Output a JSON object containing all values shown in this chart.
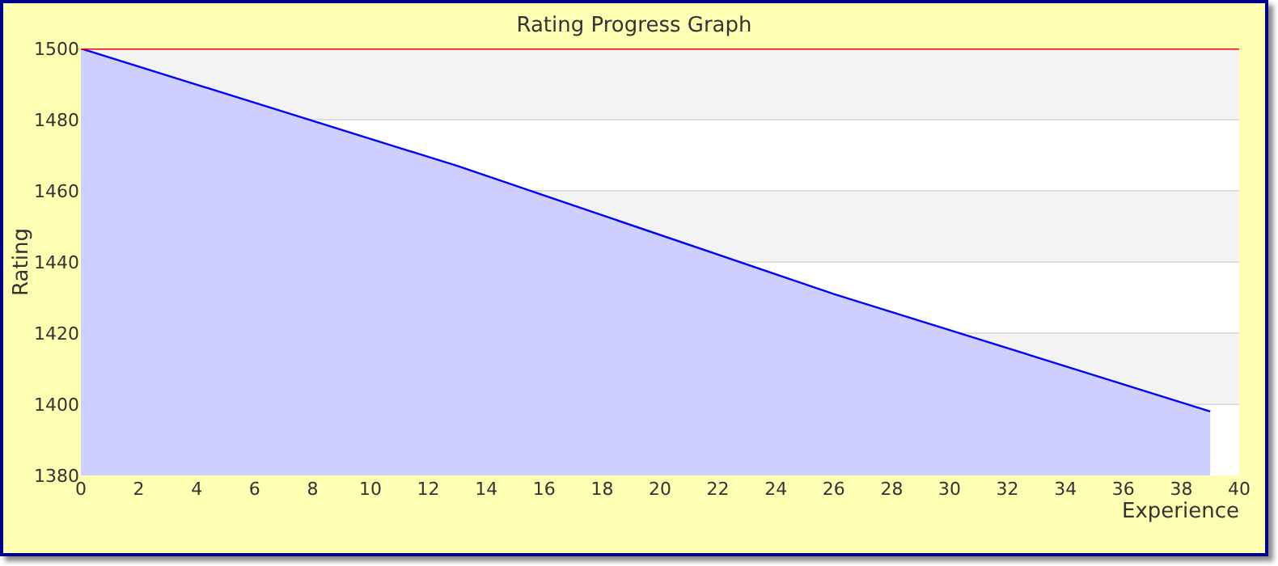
{
  "chart_data": {
    "type": "area",
    "title": "Rating Progress Graph",
    "xlabel": "Experience",
    "ylabel": "Rating",
    "x": [
      0,
      13,
      26,
      39
    ],
    "series": [
      {
        "color": "#0000ff",
        "values": [
          1500,
          1467,
          1431,
          1398
        ]
      }
    ],
    "xlim": [
      0,
      40
    ],
    "xticks": [
      0,
      2,
      4,
      6,
      8,
      10,
      12,
      14,
      16,
      18,
      20,
      22,
      24,
      26,
      28,
      30,
      32,
      34,
      36,
      38,
      40
    ],
    "ylim": [
      1380,
      1500
    ],
    "yticks": [
      1380,
      1400,
      1420,
      1440,
      1460,
      1480,
      1500
    ],
    "ref_lines": [
      {
        "axis": "y",
        "value": 1500,
        "color": "#ff0000"
      }
    ],
    "grid": "y"
  }
}
